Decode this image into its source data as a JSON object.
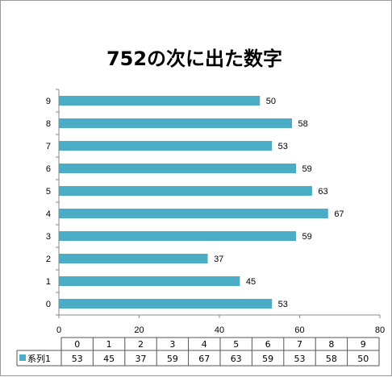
{
  "chart_data": {
    "type": "bar",
    "orientation": "horizontal",
    "title": "752の次に出た数字",
    "categories": [
      "0",
      "1",
      "2",
      "3",
      "4",
      "5",
      "6",
      "7",
      "8",
      "9"
    ],
    "series": [
      {
        "name": "系列1",
        "values": [
          53,
          45,
          37,
          59,
          67,
          63,
          59,
          53,
          58,
          50
        ]
      }
    ],
    "xlim": [
      0,
      80
    ],
    "x_ticks": [
      "0",
      "20",
      "40",
      "60",
      "80"
    ],
    "grid": false,
    "data_labels": true,
    "data_table": true,
    "bar_color": "#4bacc6"
  }
}
